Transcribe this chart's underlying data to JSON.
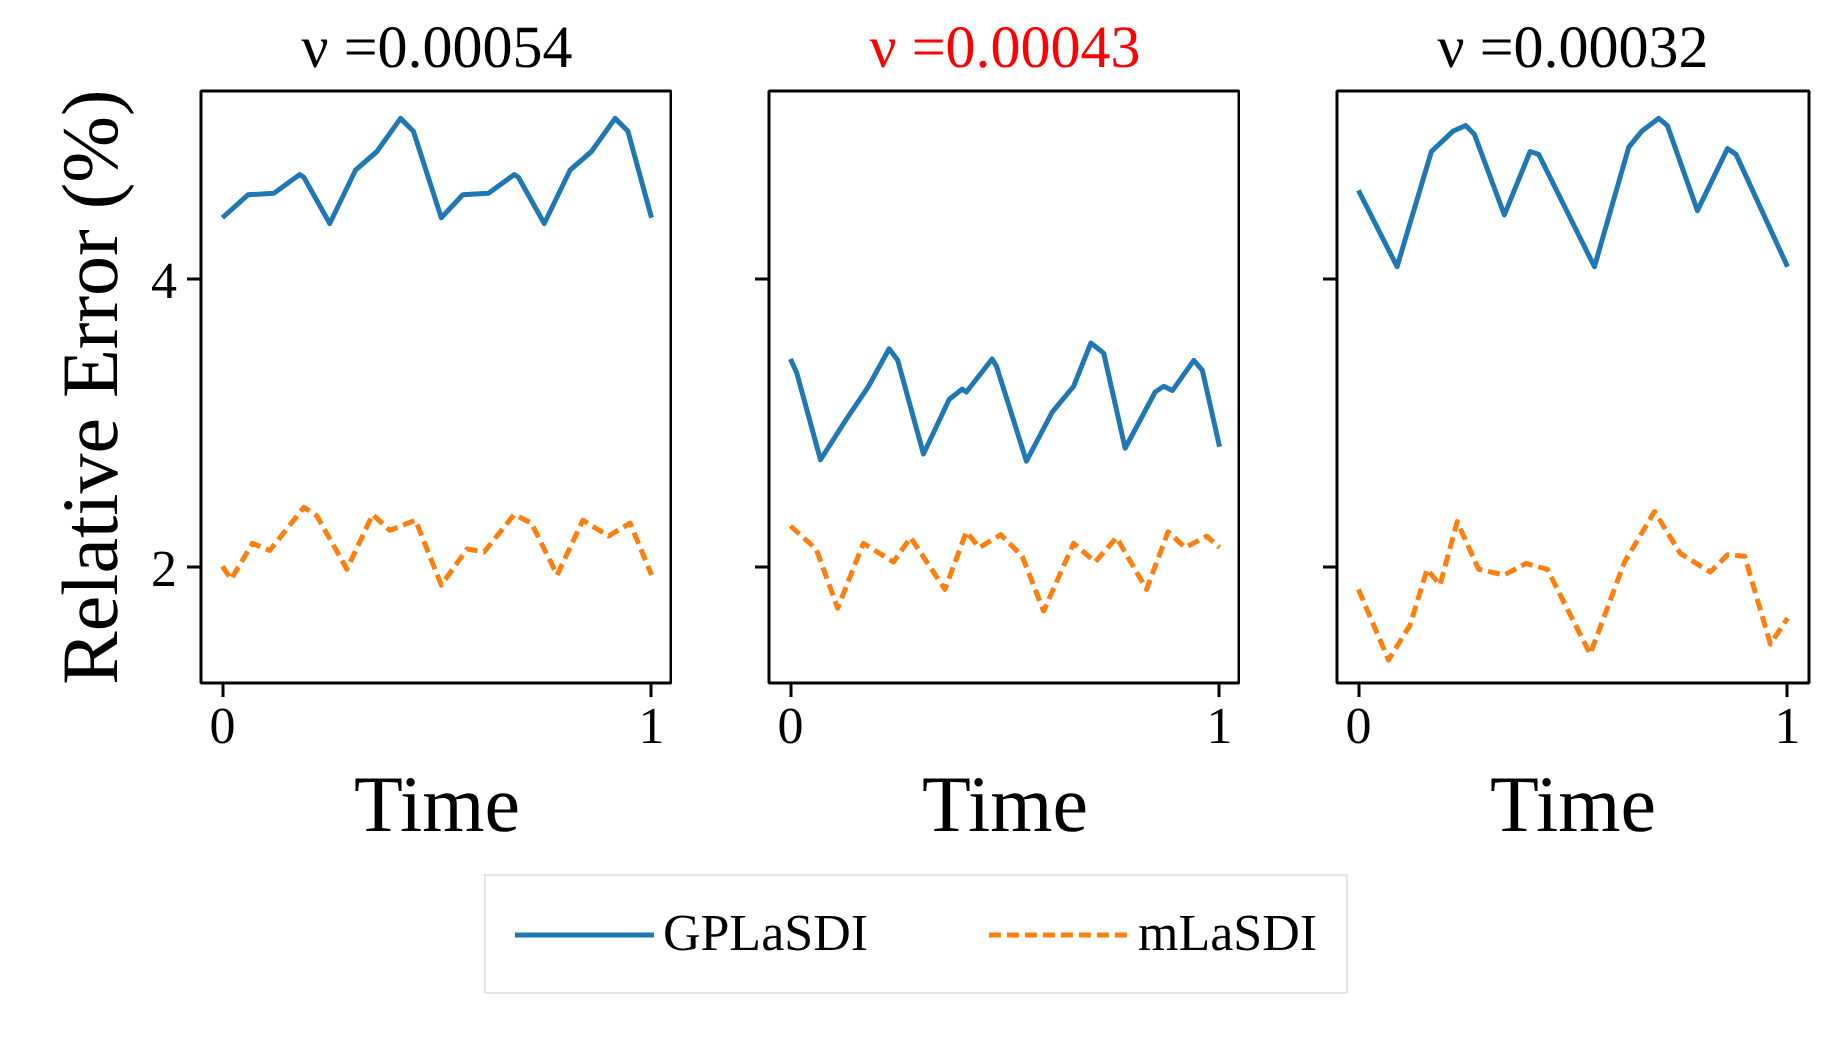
{
  "chart_data": [
    {
      "type": "line",
      "title": "ν =0.00054",
      "xlabel": "Time",
      "ylabel": "Relative Error (%)",
      "xlim": [
        -0.05,
        1.05
      ],
      "ylim": [
        1.2,
        5.31
      ],
      "xticks": [
        0,
        1
      ],
      "yticks": [
        2,
        4
      ],
      "legend": "bottom",
      "grid": false,
      "series": [
        {
          "name": "GPLaSDI",
          "color": "#1f77b4",
          "line_style": "solid",
          "x": [
            0,
            0.06,
            0.12,
            0.18,
            0.19,
            0.25,
            0.31,
            0.36,
            0.415,
            0.445,
            0.51,
            0.56,
            0.62,
            0.68,
            0.69,
            0.75,
            0.81,
            0.86,
            0.915,
            0.945,
            1.0
          ],
          "values": [
            4.43,
            4.59,
            4.6,
            4.73,
            4.71,
            4.39,
            4.76,
            4.89,
            5.12,
            5.03,
            4.43,
            4.59,
            4.6,
            4.73,
            4.71,
            4.39,
            4.76,
            4.89,
            5.12,
            5.03,
            4.43
          ]
        },
        {
          "name": "mLaSDI",
          "color": "#ff7f0e",
          "line_style": "dashed",
          "x": [
            0,
            0.02,
            0.07,
            0.11,
            0.19,
            0.22,
            0.29,
            0.35,
            0.39,
            0.45,
            0.51,
            0.57,
            0.61,
            0.68,
            0.72,
            0.78,
            0.84,
            0.9,
            0.95,
            1.0
          ],
          "values": [
            2.01,
            1.92,
            2.17,
            2.12,
            2.42,
            2.36,
            1.99,
            2.37,
            2.26,
            2.33,
            1.88,
            2.13,
            2.11,
            2.37,
            2.31,
            1.95,
            2.33,
            2.22,
            2.31,
            1.95
          ]
        }
      ]
    },
    {
      "type": "line",
      "title": "ν =0.00043",
      "xlabel": "Time",
      "xlim": [
        -0.05,
        1.05
      ],
      "ylim": [
        1.2,
        5.31
      ],
      "xticks": [
        0,
        1
      ],
      "yticks": [
        2,
        4
      ],
      "tick_labels": "x",
      "grid": false,
      "series": [
        {
          "color": "#1f77b4",
          "line_style": "solid",
          "x": [
            0,
            0.015,
            0.07,
            0.13,
            0.18,
            0.23,
            0.25,
            0.31,
            0.37,
            0.4,
            0.41,
            0.47,
            0.48,
            0.55,
            0.61,
            0.66,
            0.7,
            0.73,
            0.78,
            0.85,
            0.87,
            0.89,
            0.94,
            0.96,
            1.0
          ],
          "values": [
            3.45,
            3.35,
            2.75,
            3.03,
            3.25,
            3.52,
            3.44,
            2.79,
            3.17,
            3.24,
            3.22,
            3.45,
            3.4,
            2.74,
            3.08,
            3.26,
            3.56,
            3.49,
            2.83,
            3.22,
            3.26,
            3.23,
            3.44,
            3.37,
            2.84
          ]
        },
        {
          "color": "#ff7f0e",
          "line_style": "dashed",
          "x": [
            0,
            0.06,
            0.11,
            0.17,
            0.24,
            0.28,
            0.36,
            0.41,
            0.44,
            0.49,
            0.54,
            0.59,
            0.66,
            0.71,
            0.76,
            0.83,
            0.88,
            0.92,
            0.97,
            1.0
          ],
          "values": [
            2.29,
            2.13,
            1.72,
            2.17,
            2.04,
            2.21,
            1.85,
            2.25,
            2.14,
            2.23,
            2.08,
            1.7,
            2.17,
            2.04,
            2.21,
            1.85,
            2.25,
            2.14,
            2.22,
            2.14
          ]
        }
      ]
    },
    {
      "type": "line",
      "title": "ν =0.00032",
      "xlabel": "Time",
      "xlim": [
        -0.05,
        1.05
      ],
      "ylim": [
        1.2,
        5.31
      ],
      "xticks": [
        0,
        1
      ],
      "yticks": [
        2,
        4
      ],
      "tick_labels": "x",
      "grid": false,
      "series": [
        {
          "color": "#1f77b4",
          "line_style": "solid",
          "x": [
            0,
            0.09,
            0.17,
            0.22,
            0.25,
            0.27,
            0.34,
            0.4,
            0.42,
            0.55,
            0.63,
            0.66,
            0.7,
            0.72,
            0.79,
            0.86,
            0.88,
            1.0
          ],
          "values": [
            4.62,
            4.09,
            4.89,
            5.03,
            5.07,
            5.01,
            4.45,
            4.89,
            4.87,
            4.09,
            4.92,
            5.03,
            5.12,
            5.07,
            4.48,
            4.91,
            4.87,
            4.09
          ]
        },
        {
          "color": "#ff7f0e",
          "line_style": "dashed",
          "x": [
            0,
            0.07,
            0.12,
            0.16,
            0.19,
            0.23,
            0.28,
            0.34,
            0.39,
            0.44,
            0.54,
            0.62,
            0.69,
            0.75,
            0.82,
            0.86,
            0.9,
            0.96,
            1.0
          ],
          "values": [
            1.85,
            1.36,
            1.6,
            1.99,
            1.88,
            2.32,
            1.99,
            1.95,
            2.03,
            1.99,
            1.4,
            2.04,
            2.39,
            2.1,
            1.97,
            2.09,
            2.08,
            1.47,
            1.65
          ]
        }
      ]
    }
  ]
}
